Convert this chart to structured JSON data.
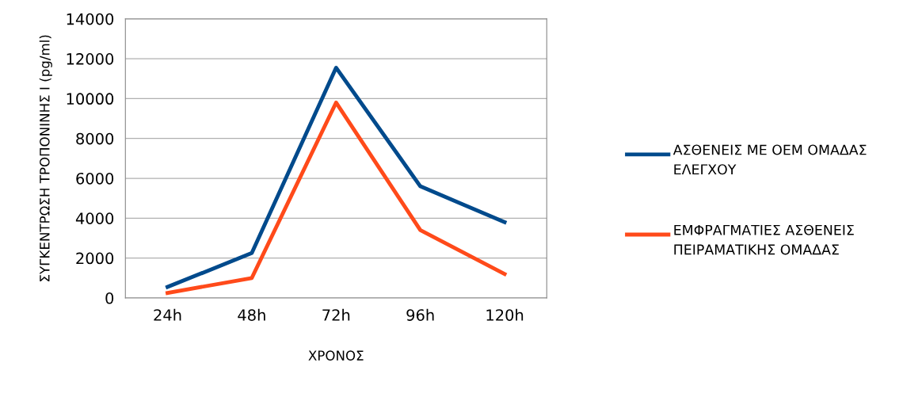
{
  "chart_data": {
    "type": "line",
    "xlabel": "ΧΡΟΝΟΣ",
    "ylabel": "ΣΥΓΚΕΝΤΡΩΣΗ ΤΡΟΠΟΝΙΝΗΣ Ι (pg/ml)",
    "categories": [
      "24h",
      "48h",
      "72h",
      "96h",
      "120h"
    ],
    "series": [
      {
        "name": "ΑΣΘΕΝΕΙΣ ΜΕ ΟΕΜ ΟΜΑΔΑΣ ΕΛΕΓΧΟΥ",
        "color": "#004a8c",
        "values": [
          550,
          2250,
          11550,
          5600,
          3800
        ]
      },
      {
        "name": "ΕΜΦΡΑΓΜΑΤΙΕΣ ΑΣΘΕΝΕΙΣ ΠΕΙΡΑΜΑΤΙΚΗΣ ΟΜΑΔΑΣ",
        "color": "#ff4a1a",
        "values": [
          250,
          1000,
          9800,
          3400,
          1200
        ]
      }
    ],
    "ylim": [
      0,
      14000
    ],
    "yticks": [
      0,
      2000,
      4000,
      6000,
      8000,
      10000,
      12000,
      14000
    ],
    "grid": "y",
    "legend": "right",
    "marker": "none",
    "line_style": "solid"
  }
}
